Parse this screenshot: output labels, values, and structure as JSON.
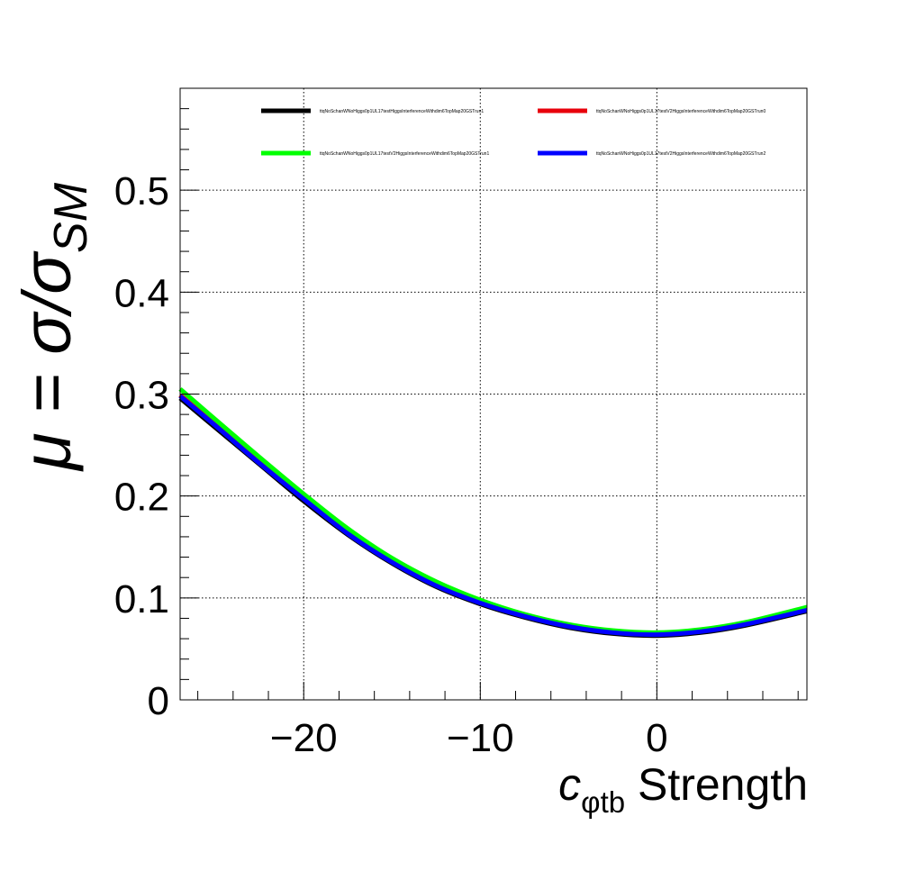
{
  "chart_data": {
    "type": "line",
    "title": "",
    "xlabel": {
      "main": "c",
      "sub": "φtb",
      "rest": " Strength"
    },
    "ylabel": {
      "prefix": "μ = σ/σ",
      "sub": "SM"
    },
    "xlim": [
      -27,
      8.5
    ],
    "ylim": [
      0,
      0.6
    ],
    "x_ticks": [
      -20,
      -10,
      0
    ],
    "x_tick_labels": [
      "−20",
      "−10",
      "0"
    ],
    "y_ticks": [
      0,
      0.1,
      0.2,
      0.3,
      0.4,
      0.5
    ],
    "y_tick_labels": [
      "0",
      "0.1",
      "0.2",
      "0.3",
      "0.4",
      "0.5"
    ],
    "grid": true,
    "legend_position": "top",
    "series": [
      {
        "name": "ttqNoSchanWNoHiggs0p1UL17testHiggsInterferenceWithdim6TopMap20GSTrun1",
        "color": "#000000",
        "x": [
          -27,
          -25,
          -22.5,
          -20,
          -17.5,
          -15,
          -12.5,
          -10,
          -7.5,
          -5,
          -2.5,
          0,
          2.5,
          5,
          8.5
        ],
        "y": [
          0.296,
          0.267,
          0.231,
          0.195,
          0.162,
          0.134,
          0.111,
          0.094,
          0.081,
          0.071,
          0.065,
          0.063,
          0.066,
          0.073,
          0.087
        ]
      },
      {
        "name": "ttqNoSchanWNoHiggs0p1UL17testV2HiggsInterferenceWithdim6TopMap20GSTrun0",
        "color": "#e8000b",
        "x": [
          -27,
          -25,
          -22.5,
          -20,
          -17.5,
          -15,
          -12.5,
          -10,
          -7.5,
          -5,
          -2.5,
          0,
          2.5,
          5,
          8.5
        ],
        "y": [
          0.299,
          0.27,
          0.233,
          0.198,
          0.164,
          0.136,
          0.113,
          0.096,
          0.082,
          0.073,
          0.067,
          0.065,
          0.068,
          0.075,
          0.089
        ]
      },
      {
        "name": "ttqNoSchanWNoHiggs0p1UL17testV2HiggsInterferenceWithdim6TopMap20GSTrun1",
        "color": "#00ff00",
        "x": [
          -27,
          -25,
          -22.5,
          -20,
          -17.5,
          -15,
          -12.5,
          -10,
          -7.5,
          -5,
          -2.5,
          0,
          2.5,
          5,
          8.5
        ],
        "y": [
          0.305,
          0.275,
          0.238,
          0.202,
          0.168,
          0.139,
          0.116,
          0.098,
          0.084,
          0.074,
          0.068,
          0.066,
          0.069,
          0.076,
          0.091
        ]
      },
      {
        "name": "ttqNoSchanWNoHiggs0p1UL17testV2HiggsInterferenceWithdim6TopMap20GSTrun2",
        "color": "#0000ff",
        "x": [
          -27,
          -25,
          -22.5,
          -20,
          -17.5,
          -15,
          -12.5,
          -10,
          -7.5,
          -5,
          -2.5,
          0,
          2.5,
          5,
          8.5
        ],
        "y": [
          0.298,
          0.269,
          0.232,
          0.197,
          0.163,
          0.135,
          0.112,
          0.095,
          0.082,
          0.072,
          0.066,
          0.064,
          0.067,
          0.074,
          0.088
        ]
      }
    ]
  }
}
